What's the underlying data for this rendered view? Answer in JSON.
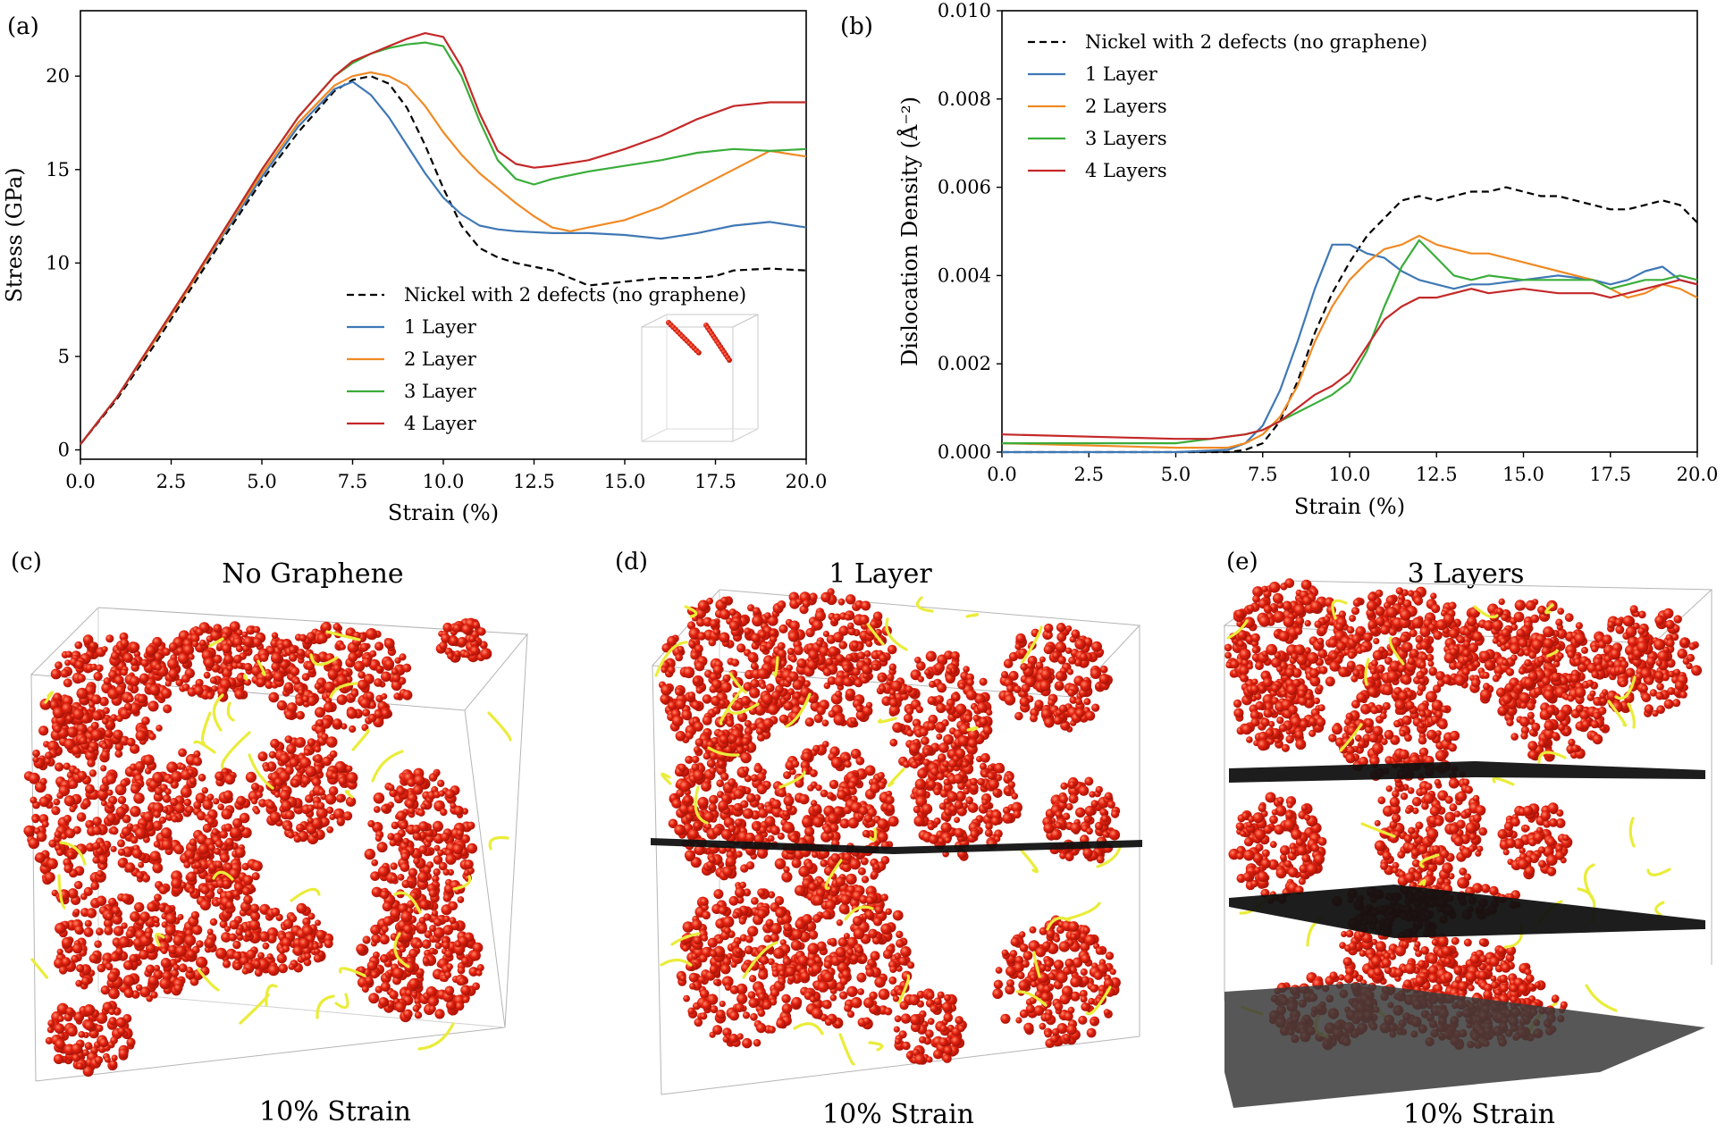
{
  "panels": {
    "a": {
      "tag": "(a)",
      "inset_icon": "red-atom-cluster-in-wireframe-box"
    },
    "b": {
      "tag": "(b)"
    },
    "c": {
      "tag": "(c)",
      "title": "No Graphene",
      "caption": "10% Strain"
    },
    "d": {
      "tag": "(d)",
      "title": "1 Layer",
      "caption": "10% Strain"
    },
    "e": {
      "tag": "(e)",
      "title": "3 Layers",
      "caption": "10% Strain"
    }
  },
  "colors": {
    "nickel_no_graphene": "#000000",
    "layer1": "#3f78b5",
    "layer2": "#f08a24",
    "layer3": "#3aad3a",
    "layer4": "#c42828",
    "atoms_red": "#e01f10",
    "dislocation_yellow": "#eaec3a",
    "graphene_black": "#111111",
    "box_edge": "#b8b8b8"
  },
  "chart_data": [
    {
      "type": "line",
      "panel": "a",
      "xlabel": "Strain (%)",
      "ylabel": "Stress (GPa)",
      "xlim": [
        0,
        20
      ],
      "ylim": [
        -0.5,
        23.5
      ],
      "xticks": [
        "0.0",
        "2.5",
        "5.0",
        "7.5",
        "10.0",
        "12.5",
        "15.0",
        "17.5",
        "20.0"
      ],
      "yticks": [
        "0",
        "5",
        "10",
        "15",
        "20"
      ],
      "xtick_values": [
        0,
        2.5,
        5,
        7.5,
        10,
        12.5,
        15,
        17.5,
        20
      ],
      "ytick_values": [
        0,
        5,
        10,
        15,
        20
      ],
      "legend_position": "lower-right",
      "grid": false,
      "series": [
        {
          "name": "Nickel with 2 defects (no graphene)",
          "style": "dashed",
          "color": "#000000",
          "x": [
            0,
            1,
            2,
            3,
            4,
            5,
            6,
            7,
            7.5,
            8,
            8.5,
            9,
            9.5,
            10,
            10.5,
            11,
            11.5,
            12,
            13,
            14,
            15,
            16,
            17,
            17.5,
            18,
            19,
            20
          ],
          "y": [
            0.3,
            2.7,
            5.5,
            8.5,
            11.5,
            14.4,
            17.0,
            19.2,
            19.8,
            20.0,
            19.6,
            18.3,
            16.3,
            14.0,
            12.0,
            10.8,
            10.3,
            10.0,
            9.6,
            8.8,
            9.0,
            9.2,
            9.2,
            9.3,
            9.6,
            9.7,
            9.6
          ]
        },
        {
          "name": "1 Layer",
          "style": "solid",
          "color": "#3f78b5",
          "x": [
            0,
            1,
            2,
            3,
            4,
            5,
            6,
            7,
            7.5,
            8,
            8.5,
            9,
            9.5,
            10,
            10.5,
            11,
            11.5,
            12,
            13,
            14,
            15,
            16,
            17,
            18,
            19,
            20
          ],
          "y": [
            0.3,
            2.8,
            5.7,
            8.7,
            11.7,
            14.6,
            17.3,
            19.3,
            19.7,
            19.0,
            17.8,
            16.3,
            14.8,
            13.5,
            12.6,
            12.0,
            11.8,
            11.7,
            11.6,
            11.6,
            11.5,
            11.3,
            11.6,
            12.0,
            12.2,
            11.9
          ]
        },
        {
          "name": "2 Layer",
          "style": "solid",
          "color": "#f08a24",
          "x": [
            0,
            1,
            2,
            3,
            4,
            5,
            6,
            7,
            7.5,
            8,
            8.5,
            9,
            9.5,
            10,
            10.5,
            11,
            11.5,
            12,
            12.5,
            13,
            13.5,
            14,
            15,
            16,
            17,
            18,
            19,
            20
          ],
          "y": [
            0.3,
            2.8,
            5.7,
            8.7,
            11.8,
            14.8,
            17.5,
            19.5,
            20.0,
            20.2,
            20.0,
            19.5,
            18.4,
            17.0,
            15.8,
            14.8,
            14.0,
            13.2,
            12.5,
            11.9,
            11.7,
            11.9,
            12.3,
            13.0,
            14.0,
            15.0,
            16.0,
            15.7
          ]
        },
        {
          "name": "3 Layer",
          "style": "solid",
          "color": "#3aad3a",
          "x": [
            0,
            1,
            2,
            3,
            4,
            5,
            6,
            7,
            7.5,
            8,
            8.5,
            9,
            9.5,
            10,
            10.5,
            11,
            11.5,
            12,
            12.5,
            13,
            14,
            15,
            16,
            17,
            18,
            19,
            20
          ],
          "y": [
            0.3,
            2.8,
            5.8,
            8.8,
            11.9,
            15.0,
            17.8,
            20.0,
            20.7,
            21.2,
            21.5,
            21.7,
            21.8,
            21.6,
            20.0,
            17.6,
            15.5,
            14.5,
            14.2,
            14.5,
            14.9,
            15.2,
            15.5,
            15.9,
            16.1,
            16.0,
            16.1
          ]
        },
        {
          "name": "4 Layer",
          "style": "solid",
          "color": "#c42828",
          "x": [
            0,
            1,
            2,
            3,
            4,
            5,
            6,
            7,
            7.5,
            8,
            8.5,
            9,
            9.5,
            10,
            10.5,
            11,
            11.5,
            12,
            12.5,
            13,
            14,
            15,
            16,
            17,
            18,
            19,
            20
          ],
          "y": [
            0.3,
            2.8,
            5.8,
            8.8,
            11.9,
            15.0,
            17.8,
            20.0,
            20.8,
            21.2,
            21.6,
            22.0,
            22.3,
            22.1,
            20.5,
            18.0,
            16.0,
            15.3,
            15.1,
            15.2,
            15.5,
            16.1,
            16.8,
            17.7,
            18.4,
            18.6,
            18.6
          ]
        }
      ]
    },
    {
      "type": "line",
      "panel": "b",
      "xlabel": "Strain (%)",
      "ylabel": "Dislocation Density (Å⁻²)",
      "xlim": [
        0,
        20
      ],
      "ylim": [
        0,
        0.01
      ],
      "xticks": [
        "0.0",
        "2.5",
        "5.0",
        "7.5",
        "10.0",
        "12.5",
        "15.0",
        "17.5",
        "20.0"
      ],
      "yticks": [
        "0.000",
        "0.002",
        "0.004",
        "0.006",
        "0.008",
        "0.010"
      ],
      "xtick_values": [
        0,
        2.5,
        5,
        7.5,
        10,
        12.5,
        15,
        17.5,
        20
      ],
      "ytick_values": [
        0,
        0.002,
        0.004,
        0.006,
        0.008,
        0.01
      ],
      "legend_position": "top-left",
      "grid": false,
      "series": [
        {
          "name": "Nickel with 2 defects (no graphene)",
          "style": "dashed",
          "color": "#000000",
          "x": [
            0,
            6.5,
            7,
            7.5,
            8,
            8.5,
            9,
            9.5,
            10,
            10.5,
            11,
            11.5,
            12,
            12.5,
            13,
            13.5,
            14,
            14.5,
            15,
            15.5,
            16,
            16.5,
            17,
            17.5,
            18,
            18.5,
            19,
            19.5,
            20
          ],
          "y": [
            0,
            0,
            5e-05,
            0.0002,
            0.0007,
            0.0016,
            0.0027,
            0.0036,
            0.0043,
            0.0049,
            0.0053,
            0.0057,
            0.0058,
            0.0057,
            0.0058,
            0.0059,
            0.0059,
            0.006,
            0.0059,
            0.0058,
            0.0058,
            0.0057,
            0.0056,
            0.0055,
            0.0055,
            0.0056,
            0.0057,
            0.0056,
            0.0052
          ]
        },
        {
          "name": "1 Layer",
          "style": "solid",
          "color": "#3f78b5",
          "x": [
            0,
            5,
            6.5,
            7,
            7.5,
            8,
            8.5,
            9,
            9.5,
            10,
            10.5,
            11,
            11.5,
            12,
            12.5,
            13,
            13.5,
            14,
            15,
            16,
            17,
            17.5,
            18,
            18.5,
            19,
            19.5,
            20
          ],
          "y": [
            0,
            0,
            5e-05,
            0.0002,
            0.0006,
            0.0014,
            0.0025,
            0.0037,
            0.0047,
            0.0047,
            0.0045,
            0.0044,
            0.0041,
            0.0039,
            0.0038,
            0.0037,
            0.0038,
            0.0038,
            0.0039,
            0.004,
            0.0039,
            0.0038,
            0.0039,
            0.0041,
            0.0042,
            0.0039,
            0.0038
          ]
        },
        {
          "name": "2 Layers",
          "style": "solid",
          "color": "#f08a24",
          "x": [
            0,
            5,
            6.5,
            7,
            7.5,
            8,
            8.5,
            9,
            9.5,
            10,
            10.5,
            11,
            11.5,
            12,
            12.5,
            13,
            13.5,
            14,
            15,
            16,
            17,
            17.5,
            18,
            18.5,
            19,
            19.5,
            20
          ],
          "y": [
            0.0002,
            0.0001,
            0.0001,
            0.0002,
            0.0004,
            0.0008,
            0.0015,
            0.0025,
            0.0033,
            0.0039,
            0.0043,
            0.0046,
            0.0047,
            0.0049,
            0.0047,
            0.0046,
            0.0045,
            0.0045,
            0.0043,
            0.0041,
            0.0039,
            0.0037,
            0.0035,
            0.0036,
            0.0038,
            0.0037,
            0.0035
          ]
        },
        {
          "name": "3 Layers",
          "style": "solid",
          "color": "#3aad3a",
          "x": [
            0,
            5,
            6,
            7,
            7.5,
            8,
            8.5,
            9,
            9.5,
            10,
            10.5,
            11,
            11.5,
            12,
            12.5,
            13,
            13.5,
            14,
            15,
            16,
            17,
            17.5,
            18,
            18.5,
            19,
            19.5,
            20
          ],
          "y": [
            0.0002,
            0.0002,
            0.0003,
            0.0004,
            0.0005,
            0.0007,
            0.0009,
            0.0011,
            0.0013,
            0.0016,
            0.0023,
            0.0033,
            0.0042,
            0.0048,
            0.0044,
            0.004,
            0.0039,
            0.004,
            0.0039,
            0.0039,
            0.0039,
            0.0037,
            0.0038,
            0.0039,
            0.0039,
            0.004,
            0.0039
          ]
        },
        {
          "name": "4 Layers",
          "style": "solid",
          "color": "#c42828",
          "x": [
            0,
            5,
            6,
            7,
            7.5,
            8,
            8.5,
            9,
            9.5,
            10,
            10.5,
            11,
            11.5,
            12,
            12.5,
            13,
            13.5,
            14,
            15,
            16,
            17,
            17.5,
            18,
            18.5,
            19,
            19.5,
            20
          ],
          "y": [
            0.0004,
            0.0003,
            0.0003,
            0.0004,
            0.0005,
            0.0007,
            0.001,
            0.0013,
            0.0015,
            0.0018,
            0.0024,
            0.003,
            0.0033,
            0.0035,
            0.0035,
            0.0036,
            0.0037,
            0.0036,
            0.0037,
            0.0036,
            0.0036,
            0.0035,
            0.0036,
            0.0037,
            0.0038,
            0.0039,
            0.0038
          ]
        }
      ]
    }
  ]
}
